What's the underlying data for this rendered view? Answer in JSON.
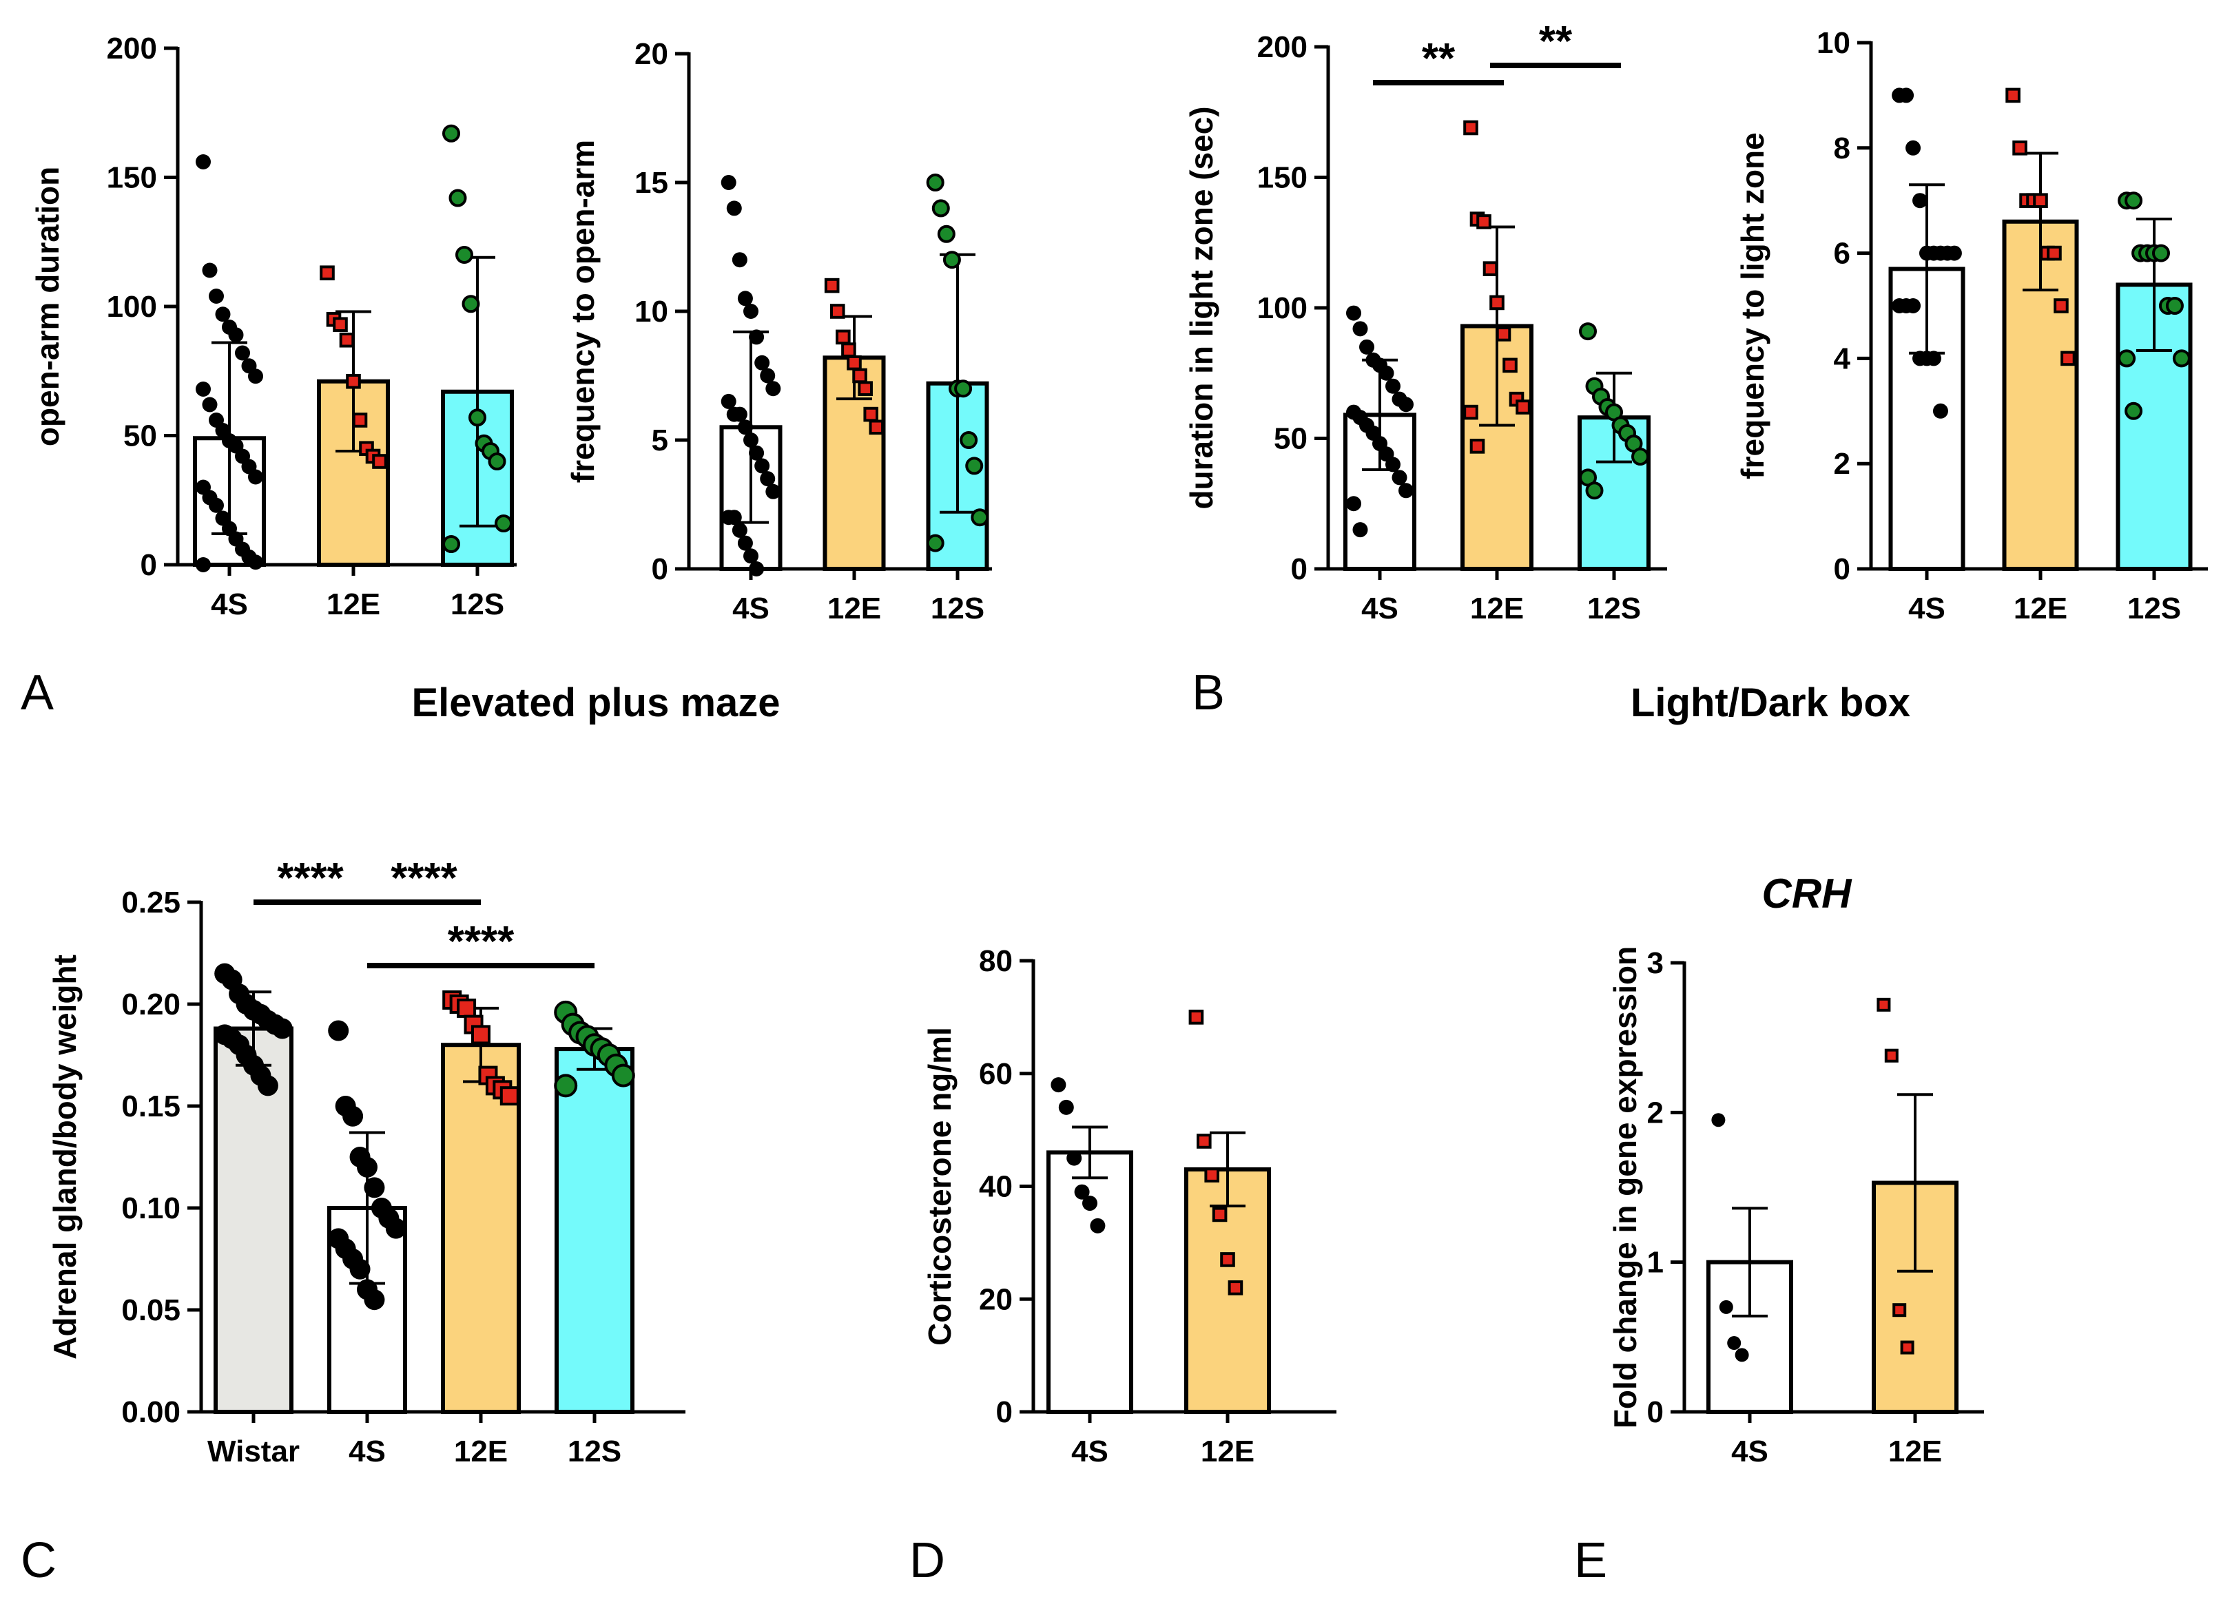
{
  "colors": {
    "white": "#ffffff",
    "gray": "#e7e7e3",
    "orange": "#fbd37d",
    "cyan": "#74fafb",
    "black": "#000000",
    "red": "#e3251b",
    "green": "#1a8a2a"
  },
  "group_titles": [
    {
      "id": "epm",
      "text": "Elevated plus maze"
    },
    {
      "id": "ldb",
      "text": "Light/Dark box"
    }
  ],
  "chart_data": [
    {
      "id": "a1",
      "panel": "A",
      "type": "bar",
      "title": "",
      "ylabel": "open-arm duration",
      "ylim": [
        0,
        200
      ],
      "yticks": [
        0,
        50,
        100,
        150,
        200
      ],
      "categories": [
        "4S",
        "12E",
        "12S"
      ],
      "values": [
        49,
        71,
        67
      ],
      "sd": [
        37,
        27,
        52
      ],
      "fills": [
        "white",
        "orange",
        "cyan"
      ],
      "points": [
        {
          "marker": "circle",
          "color": "black",
          "y": [
            156,
            114,
            104,
            97,
            92,
            89,
            82,
            77,
            73,
            68,
            62,
            56,
            52,
            48,
            46,
            42,
            38,
            34,
            30,
            26,
            23,
            18,
            14,
            10,
            6,
            3,
            1,
            0
          ]
        },
        {
          "marker": "square",
          "color": "red",
          "y": [
            113,
            95,
            93,
            87,
            71,
            56,
            45,
            42,
            40
          ]
        },
        {
          "marker": "circle",
          "color": "green",
          "y": [
            167,
            142,
            120,
            101,
            57,
            47,
            44,
            40,
            16,
            8
          ]
        }
      ],
      "significance": []
    },
    {
      "id": "a2",
      "panel": "",
      "type": "bar",
      "title": "",
      "ylabel": "frequency to open-arm",
      "ylim": [
        0,
        20
      ],
      "yticks": [
        0,
        5,
        10,
        15,
        20
      ],
      "categories": [
        "4S",
        "12E",
        "12S"
      ],
      "values": [
        5.5,
        8.2,
        7.2
      ],
      "sd": [
        3.7,
        1.6,
        5.0
      ],
      "fills": [
        "white",
        "orange",
        "cyan"
      ],
      "points": [
        {
          "marker": "circle",
          "color": "black",
          "y": [
            15,
            14,
            12,
            10.5,
            10,
            9,
            8,
            7.5,
            7,
            6.5,
            6,
            6,
            5.5,
            5,
            4.5,
            4,
            3.5,
            3,
            2,
            2,
            1.5,
            1,
            0.5,
            0
          ]
        },
        {
          "marker": "square",
          "color": "red",
          "y": [
            11,
            10,
            9,
            8.5,
            8,
            7.5,
            7,
            6,
            5.5
          ]
        },
        {
          "marker": "circle",
          "color": "green",
          "y": [
            15,
            14,
            13,
            12,
            7,
            7,
            5,
            4,
            2,
            1
          ]
        }
      ],
      "significance": []
    },
    {
      "id": "b1",
      "panel": "B",
      "type": "bar",
      "title": "",
      "ylabel": "duration in light zone (sec)",
      "ylim": [
        0,
        200
      ],
      "yticks": [
        0,
        50,
        100,
        150,
        200
      ],
      "categories": [
        "4S",
        "12E",
        "12S"
      ],
      "values": [
        59,
        93,
        58
      ],
      "sd": [
        21,
        38,
        17
      ],
      "fills": [
        "white",
        "orange",
        "cyan"
      ],
      "points": [
        {
          "marker": "circle",
          "color": "black",
          "y": [
            98,
            92,
            85,
            80,
            78,
            75,
            70,
            65,
            63,
            60,
            58,
            55,
            52,
            48,
            44,
            40,
            35,
            30,
            25,
            15
          ]
        },
        {
          "marker": "square",
          "color": "red",
          "y": [
            169,
            134,
            133,
            115,
            102,
            90,
            78,
            65,
            62,
            60,
            47
          ]
        },
        {
          "marker": "circle",
          "color": "green",
          "y": [
            91,
            70,
            66,
            62,
            60,
            55,
            52,
            48,
            43,
            35,
            30
          ]
        }
      ],
      "significance": [
        {
          "from": 0,
          "to": 1,
          "label": "**"
        },
        {
          "from": 1,
          "to": 2,
          "label": "**"
        }
      ]
    },
    {
      "id": "b2",
      "panel": "",
      "type": "bar",
      "title": "",
      "ylabel": "frequency to light zone",
      "ylim": [
        0,
        10
      ],
      "yticks": [
        0,
        2,
        4,
        6,
        8,
        10
      ],
      "categories": [
        "4S",
        "12E",
        "12S"
      ],
      "values": [
        5.7,
        6.6,
        5.4
      ],
      "sd": [
        1.6,
        1.3,
        1.25
      ],
      "fills": [
        "white",
        "orange",
        "cyan"
      ],
      "points": [
        {
          "marker": "circle",
          "color": "black",
          "y": [
            9,
            9,
            8,
            7,
            6,
            6,
            6,
            6,
            6,
            5,
            5,
            5,
            4,
            4,
            4,
            3
          ]
        },
        {
          "marker": "square",
          "color": "red",
          "y": [
            9,
            8,
            7,
            7,
            7,
            6,
            6,
            5,
            4
          ]
        },
        {
          "marker": "circle",
          "color": "green",
          "y": [
            7,
            7,
            6,
            6,
            6,
            6,
            5,
            5,
            4,
            4,
            3
          ]
        }
      ],
      "significance": []
    },
    {
      "id": "c",
      "panel": "C",
      "type": "bar",
      "title": "",
      "ylabel": "Adrenal gland/body weight",
      "ylim": [
        0,
        0.25
      ],
      "yticks": [
        "0.00",
        "0.05",
        "0.10",
        "0.15",
        "0.20",
        "0.25"
      ],
      "categories": [
        "Wistar",
        "4S",
        "12E",
        "12S"
      ],
      "values": [
        0.188,
        0.1,
        0.18,
        0.178
      ],
      "sd": [
        0.018,
        0.037,
        0.018,
        0.01
      ],
      "fills": [
        "gray",
        "white",
        "orange",
        "cyan"
      ],
      "points": [
        {
          "marker": "circle",
          "color": "black",
          "y": [
            0.215,
            0.212,
            0.205,
            0.2,
            0.197,
            0.195,
            0.192,
            0.19,
            0.188,
            0.185,
            0.183,
            0.18,
            0.175,
            0.17,
            0.165,
            0.16
          ]
        },
        {
          "marker": "circle",
          "color": "black",
          "y": [
            0.187,
            0.15,
            0.145,
            0.125,
            0.12,
            0.11,
            0.1,
            0.095,
            0.09,
            0.085,
            0.08,
            0.075,
            0.07,
            0.06,
            0.055
          ]
        },
        {
          "marker": "square",
          "color": "red",
          "y": [
            0.202,
            0.2,
            0.198,
            0.19,
            0.185,
            0.165,
            0.16,
            0.158,
            0.155
          ]
        },
        {
          "marker": "circle",
          "color": "green",
          "y": [
            0.196,
            0.19,
            0.186,
            0.184,
            0.18,
            0.178,
            0.175,
            0.17,
            0.165,
            0.16
          ]
        }
      ],
      "significance": [
        {
          "from": 0,
          "to": 1,
          "label": "****"
        },
        {
          "from": 1,
          "to": 2,
          "label": "****"
        },
        {
          "from": 1,
          "to": 3,
          "label": "****"
        }
      ]
    },
    {
      "id": "d",
      "panel": "D",
      "type": "bar",
      "title": "",
      "ylabel": "Corticosterone ng/ml",
      "ylim": [
        0,
        80
      ],
      "yticks": [
        0,
        20,
        40,
        60,
        80
      ],
      "categories": [
        "4S",
        "12E"
      ],
      "values": [
        46,
        43
      ],
      "sem": [
        4.5,
        6.5
      ],
      "fills": [
        "white",
        "orange"
      ],
      "points": [
        {
          "marker": "circle",
          "color": "black",
          "y": [
            58,
            54,
            45,
            39,
            37,
            33
          ]
        },
        {
          "marker": "square",
          "color": "red",
          "y": [
            70,
            48,
            42,
            35,
            27,
            22
          ]
        }
      ],
      "significance": []
    },
    {
      "id": "e",
      "panel": "E",
      "type": "bar",
      "title": "CRH",
      "ylabel": "Fold change in gene expression",
      "ylim": [
        0,
        3
      ],
      "yticks": [
        0,
        1,
        2,
        3
      ],
      "categories": [
        "4S",
        "12E"
      ],
      "values": [
        1.0,
        1.53
      ],
      "sem": [
        0.36,
        0.59
      ],
      "fills": [
        "white",
        "orange"
      ],
      "points": [
        {
          "marker": "circle",
          "color": "black",
          "y": [
            1.95,
            0.7,
            0.46,
            0.38
          ]
        },
        {
          "marker": "square",
          "color": "red",
          "y": [
            2.72,
            2.38,
            0.68,
            0.43
          ]
        }
      ],
      "significance": []
    }
  ]
}
